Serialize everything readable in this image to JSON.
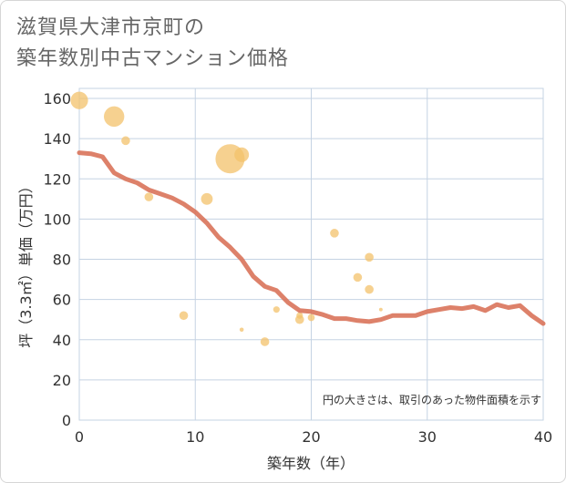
{
  "title": {
    "line1": "滋賀県大津市京町の",
    "line2": "築年数別中古マンション価格"
  },
  "chart_data": {
    "type": "scatter",
    "title": "滋賀県大津市京町の築年数別中古マンション価格",
    "xlabel": "築年数（年）",
    "ylabel": "坪（3.3㎡）単価（万円）",
    "xlim": [
      0,
      40
    ],
    "ylim": [
      0,
      165
    ],
    "xticks": [
      0,
      10,
      20,
      30,
      40
    ],
    "yticks": [
      0,
      20,
      40,
      60,
      80,
      100,
      120,
      140,
      160
    ],
    "grid": true,
    "note": "円の大きさは、取引のあった物件面積を示す",
    "colors": {
      "bubble": "#f3c26b",
      "line": "#d9735a",
      "grid": "#c5d3e3"
    },
    "bubbles": [
      {
        "x": 0,
        "y": 159,
        "size": 3
      },
      {
        "x": 3,
        "y": 151,
        "size": 3.5
      },
      {
        "x": 4,
        "y": 139,
        "size": 1.5
      },
      {
        "x": 6,
        "y": 111,
        "size": 1.5
      },
      {
        "x": 9,
        "y": 52,
        "size": 1.5
      },
      {
        "x": 11,
        "y": 110,
        "size": 2
      },
      {
        "x": 13,
        "y": 130,
        "size": 5
      },
      {
        "x": 14,
        "y": 132,
        "size": 2.5
      },
      {
        "x": 14,
        "y": 45,
        "size": 0.4
      },
      {
        "x": 16,
        "y": 39,
        "size": 1.5
      },
      {
        "x": 17,
        "y": 55,
        "size": 0.8
      },
      {
        "x": 19,
        "y": 50,
        "size": 1.5
      },
      {
        "x": 19,
        "y": 52,
        "size": 0.8
      },
      {
        "x": 20,
        "y": 51,
        "size": 1.2
      },
      {
        "x": 22,
        "y": 93,
        "size": 1.5
      },
      {
        "x": 24,
        "y": 71,
        "size": 1.5
      },
      {
        "x": 25,
        "y": 81,
        "size": 1.5
      },
      {
        "x": 25,
        "y": 65,
        "size": 1.5
      },
      {
        "x": 26,
        "y": 55,
        "size": 0.3
      }
    ],
    "trend": {
      "x": [
        0,
        1,
        2,
        3,
        4,
        5,
        6,
        7,
        8,
        9,
        10,
        11,
        12,
        13,
        14,
        15,
        16,
        17,
        18,
        19,
        20,
        21,
        22,
        23,
        24,
        25,
        26,
        27,
        28,
        29,
        30,
        31,
        32,
        33,
        34,
        35,
        36,
        37,
        38,
        39,
        40
      ],
      "y": [
        133,
        132.5,
        131,
        123,
        120,
        118,
        114.5,
        112.5,
        110.5,
        107.5,
        103.5,
        98,
        91,
        86,
        80,
        71.5,
        66.5,
        64.5,
        58.5,
        54.5,
        54,
        52.5,
        50.5,
        50.5,
        49.5,
        49,
        50,
        52,
        52,
        52,
        54,
        55,
        56,
        55.5,
        56.5,
        54.5,
        57.5,
        56,
        57,
        52,
        48
      ]
    }
  }
}
